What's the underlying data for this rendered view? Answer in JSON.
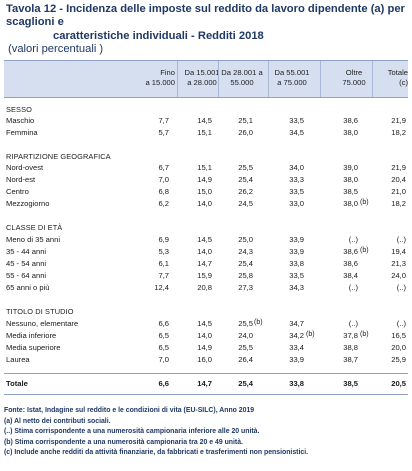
{
  "title": {
    "line1": "Tavola 12 - Incidenza delle imposte sul reddito da lavoro dipendente (a) per scaglioni e",
    "line2": "caratteristiche individuali - Redditi 2018",
    "line3": "(valori percentuali )"
  },
  "headers": [
    {
      "l1": "Fino",
      "l2": "a 15.000"
    },
    {
      "l1": "Da 15.001",
      "l2": "a 28.000"
    },
    {
      "l1": "Da 28.001 a",
      "l2": "55.000"
    },
    {
      "l1": "Da 55.001",
      "l2": "a 75.000"
    },
    {
      "l1": "Oltre",
      "l2": "75.000"
    },
    {
      "l1": "Totale",
      "l2": "(c)"
    }
  ],
  "sections": {
    "sesso": "SESSO",
    "ripartizione": "RIPARTIZIONE GEOGRAFICA",
    "eta": "CLASSE DI ETÀ",
    "studio": "TITOLO DI STUDIO"
  },
  "rows": {
    "maschio": {
      "label": "Maschio",
      "v": [
        "7,7",
        "14,5",
        "25,1",
        "33,5",
        "38,6",
        "21,9"
      ]
    },
    "femmina": {
      "label": "Femmina",
      "v": [
        "5,7",
        "15,1",
        "26,0",
        "34,5",
        "38,0",
        "18,2"
      ]
    },
    "nordovest": {
      "label": "Nord-ovest",
      "v": [
        "6,7",
        "15,1",
        "25,5",
        "34,0",
        "39,0",
        "21,9"
      ]
    },
    "nordest": {
      "label": "Nord-est",
      "v": [
        "7,0",
        "14,9",
        "25,4",
        "33,3",
        "38,0",
        "20,4"
      ]
    },
    "centro": {
      "label": "Centro",
      "v": [
        "6,8",
        "15,0",
        "26,2",
        "33,5",
        "38,5",
        "21,0"
      ]
    },
    "mezzogiorno": {
      "label": "Mezzogiorno",
      "v": [
        "6,2",
        "14,0",
        "24,5",
        "33,0",
        "38,0",
        "18,2"
      ],
      "n5": "(b)"
    },
    "eta1": {
      "label": "Meno di 35 anni",
      "v": [
        "6,9",
        "14,5",
        "25,0",
        "33,9",
        "(..)",
        "(..)"
      ]
    },
    "eta2": {
      "label": "35 - 44 anni",
      "v": [
        "5,3",
        "14,0",
        "24,3",
        "33,9",
        "38,6",
        "19,4"
      ],
      "n5": "(b)"
    },
    "eta3": {
      "label": "45 - 54 anni",
      "v": [
        "6,1",
        "14,7",
        "25,4",
        "33,8",
        "38,6",
        "21,3"
      ]
    },
    "eta4": {
      "label": "55 - 64 anni",
      "v": [
        "7,7",
        "15,9",
        "25,8",
        "33,5",
        "38,4",
        "24,0"
      ]
    },
    "eta5": {
      "label": "65 anni o più",
      "v": [
        "12,4",
        "20,8",
        "27,3",
        "34,3",
        "(..)",
        "(..)"
      ]
    },
    "st1": {
      "label": "Nessuno, elementare",
      "v": [
        "6,6",
        "14,5",
        "25,5",
        "34,7",
        "(..)",
        "(..)"
      ],
      "n3": "(b)"
    },
    "st2": {
      "label": "Media inferiore",
      "v": [
        "6,5",
        "14,0",
        "24,0",
        "34,2",
        "37,8",
        "16,5"
      ],
      "n4": "(b)",
      "n5": "(b)"
    },
    "st3": {
      "label": "Media superiore",
      "v": [
        "6,5",
        "14,9",
        "25,5",
        "33,4",
        "38,8",
        "20,0"
      ]
    },
    "st4": {
      "label": "Laurea",
      "v": [
        "7,0",
        "16,0",
        "26,4",
        "33,9",
        "38,7",
        "25,9"
      ]
    },
    "totale": {
      "label": "Totale",
      "v": [
        "6,6",
        "14,7",
        "25,4",
        "33,8",
        "38,5",
        "20,5"
      ]
    }
  },
  "footnotes": {
    "fonte": "Fonte: Istat, Indagine sul reddito e le condizioni di vita (EU-SILC), Anno 2019",
    "a": "(a) Al netto dei contributi sociali.",
    "dots": "(..) Stima corrispondente a una numerosità campionaria inferiore alle 20 unità.",
    "b": "(b) Stima corrispondente a una numerosità campionaria tra 20 e 49 unità.",
    "c": "(c) Include anche redditi da attività finanziarie, da fabbricati e trasferimenti non pensionistici."
  }
}
